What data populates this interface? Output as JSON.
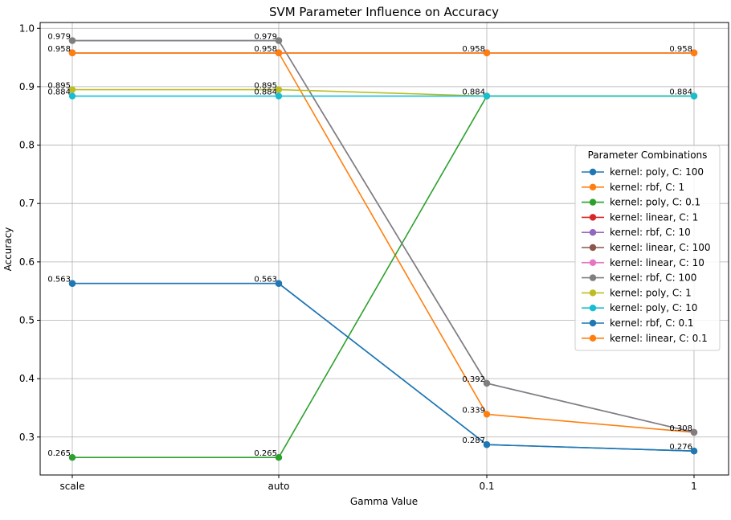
{
  "chart_data": {
    "type": "line",
    "title": "SVM Parameter Influence on Accuracy",
    "xlabel": "Gamma Value",
    "ylabel": "Accuracy",
    "categories": [
      "scale",
      "auto",
      "0.1",
      "1"
    ],
    "ylim": [
      0.235,
      1.01
    ],
    "yticks": [
      "0.3",
      "0.4",
      "0.5",
      "0.6",
      "0.7",
      "0.8",
      "0.9",
      "1.0"
    ],
    "grid": true,
    "legend": {
      "title": "Parameter Combinations",
      "placement": "center-right"
    },
    "series": [
      {
        "name": "kernel: poly, C: 100",
        "color": "#1f77b4",
        "values": [
          0.563,
          0.563,
          0.287,
          0.276
        ]
      },
      {
        "name": "kernel: rbf, C: 1",
        "color": "#ff7f0e",
        "values": [
          0.958,
          0.958,
          0.339,
          0.308
        ]
      },
      {
        "name": "kernel: poly, C: 0.1",
        "color": "#2ca02c",
        "values": [
          0.265,
          0.265,
          0.884,
          0.884
        ]
      },
      {
        "name": "kernel: linear, C: 1",
        "color": "#d62728",
        "values": [
          0.958,
          0.958,
          0.958,
          0.958
        ]
      },
      {
        "name": "kernel: rbf, C: 10",
        "color": "#9467bd",
        "values": [
          0.979,
          0.979,
          0.392,
          0.308
        ]
      },
      {
        "name": "kernel: linear, C: 100",
        "color": "#8c564b",
        "values": [
          0.958,
          0.958,
          0.958,
          0.958
        ]
      },
      {
        "name": "kernel: linear, C: 10",
        "color": "#e377c2",
        "values": [
          0.958,
          0.958,
          0.958,
          0.958
        ]
      },
      {
        "name": "kernel: rbf, C: 100",
        "color": "#7f7f7f",
        "values": [
          0.979,
          0.979,
          0.392,
          0.308
        ]
      },
      {
        "name": "kernel: poly, C: 1",
        "color": "#bcbd22",
        "values": [
          0.895,
          0.895,
          0.884,
          0.884
        ]
      },
      {
        "name": "kernel: poly, C: 10",
        "color": "#17becf",
        "values": [
          0.884,
          0.884,
          0.884,
          0.884
        ]
      },
      {
        "name": "kernel: rbf, C: 0.1",
        "color": "#1f77b4",
        "values": [
          0.563,
          0.563,
          0.287,
          0.276
        ]
      },
      {
        "name": "kernel: linear, C: 0.1",
        "color": "#ff7f0e",
        "values": [
          0.958,
          0.958,
          0.958,
          0.958
        ]
      }
    ],
    "annotations": [
      {
        "x": "scale",
        "value": 0.979,
        "text": "0.979"
      },
      {
        "x": "scale",
        "value": 0.958,
        "text": "0.958"
      },
      {
        "x": "scale",
        "value": 0.895,
        "text": "0.895"
      },
      {
        "x": "scale",
        "value": 0.884,
        "text": "0.884"
      },
      {
        "x": "scale",
        "value": 0.563,
        "text": "0.563"
      },
      {
        "x": "scale",
        "value": 0.265,
        "text": "0.265"
      },
      {
        "x": "auto",
        "value": 0.979,
        "text": "0.979"
      },
      {
        "x": "auto",
        "value": 0.958,
        "text": "0.958"
      },
      {
        "x": "auto",
        "value": 0.895,
        "text": "0.895"
      },
      {
        "x": "auto",
        "value": 0.884,
        "text": "0.884"
      },
      {
        "x": "auto",
        "value": 0.563,
        "text": "0.563"
      },
      {
        "x": "auto",
        "value": 0.265,
        "text": "0.265"
      },
      {
        "x": "0.1",
        "value": 0.958,
        "text": "0.958"
      },
      {
        "x": "0.1",
        "value": 0.884,
        "text": "0.884"
      },
      {
        "x": "0.1",
        "value": 0.392,
        "text": "0.392"
      },
      {
        "x": "0.1",
        "value": 0.339,
        "text": "0.339"
      },
      {
        "x": "0.1",
        "value": 0.287,
        "text": "0.287"
      },
      {
        "x": "1",
        "value": 0.958,
        "text": "0.958"
      },
      {
        "x": "1",
        "value": 0.884,
        "text": "0.884"
      },
      {
        "x": "1",
        "value": 0.308,
        "text": "0.308"
      },
      {
        "x": "1",
        "value": 0.276,
        "text": "0.276"
      }
    ]
  }
}
